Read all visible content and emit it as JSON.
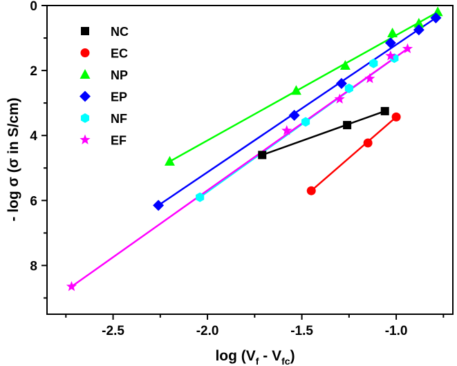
{
  "chart_data": {
    "type": "scatter",
    "xlabel": {
      "main": "log (V",
      "sub1": "f",
      "mid": " - V",
      "sub2": "fc",
      "end": ")"
    },
    "ylabel": "- log σ (σ in S/cm)",
    "xlim": [
      -2.85,
      -0.7
    ],
    "ylim": [
      0,
      9.5
    ],
    "y_inverted": true,
    "x_ticks": [
      -2.5,
      -2.0,
      -1.5,
      -1.0
    ],
    "x_tick_labels": [
      "-2.5",
      "-2.0",
      "-1.5",
      "-1.0"
    ],
    "y_ticks": [
      0,
      2,
      4,
      6,
      8
    ],
    "y_tick_labels": [
      "0",
      "2",
      "4",
      "6",
      "8"
    ],
    "legend_position": "top-left",
    "series": [
      {
        "name": "NC",
        "marker": "square",
        "color": "#000000",
        "points": [
          [
            -1.71,
            4.6
          ],
          [
            -1.26,
            3.68
          ],
          [
            -1.06,
            3.25
          ]
        ],
        "fit": [
          [
            -1.71,
            4.6
          ],
          [
            -1.06,
            3.25
          ]
        ]
      },
      {
        "name": "EC",
        "marker": "circle",
        "color": "#ff0000",
        "points": [
          [
            -1.45,
            5.7
          ],
          [
            -1.15,
            4.23
          ],
          [
            -1.0,
            3.43
          ]
        ],
        "fit": [
          [
            -1.45,
            5.7
          ],
          [
            -1.0,
            3.43
          ]
        ]
      },
      {
        "name": "NP",
        "marker": "triangle",
        "color": "#00ff00",
        "points": [
          [
            -2.2,
            4.8
          ],
          [
            -1.53,
            2.62
          ],
          [
            -1.27,
            1.85
          ],
          [
            -1.02,
            0.85
          ],
          [
            -0.88,
            0.55
          ],
          [
            -0.78,
            0.2
          ]
        ],
        "fit": [
          [
            -2.2,
            4.8
          ],
          [
            -0.78,
            0.2
          ]
        ]
      },
      {
        "name": "EP",
        "marker": "diamond",
        "color": "#0000ff",
        "points": [
          [
            -2.26,
            6.15
          ],
          [
            -1.54,
            3.38
          ],
          [
            -1.29,
            2.4
          ],
          [
            -1.03,
            1.15
          ],
          [
            -0.88,
            0.75
          ],
          [
            -0.79,
            0.38
          ]
        ],
        "fit": [
          [
            -2.26,
            6.15
          ],
          [
            -0.79,
            0.38
          ]
        ]
      },
      {
        "name": "NF",
        "marker": "hexagon",
        "color": "#00ffff",
        "points": [
          [
            -2.04,
            5.9
          ],
          [
            -1.48,
            3.58
          ],
          [
            -1.25,
            2.55
          ],
          [
            -1.12,
            1.78
          ],
          [
            -1.01,
            1.62
          ]
        ],
        "fit": [
          [
            -2.04,
            5.9
          ],
          [
            -1.01,
            1.62
          ]
        ]
      },
      {
        "name": "EF",
        "marker": "star",
        "color": "#ff00ff",
        "points": [
          [
            -2.72,
            8.65
          ],
          [
            -1.58,
            3.85
          ],
          [
            -1.3,
            2.88
          ],
          [
            -1.14,
            2.25
          ],
          [
            -1.03,
            1.55
          ],
          [
            -0.94,
            1.33
          ]
        ],
        "fit": [
          [
            -2.72,
            8.65
          ],
          [
            -0.94,
            1.33
          ]
        ]
      }
    ]
  }
}
